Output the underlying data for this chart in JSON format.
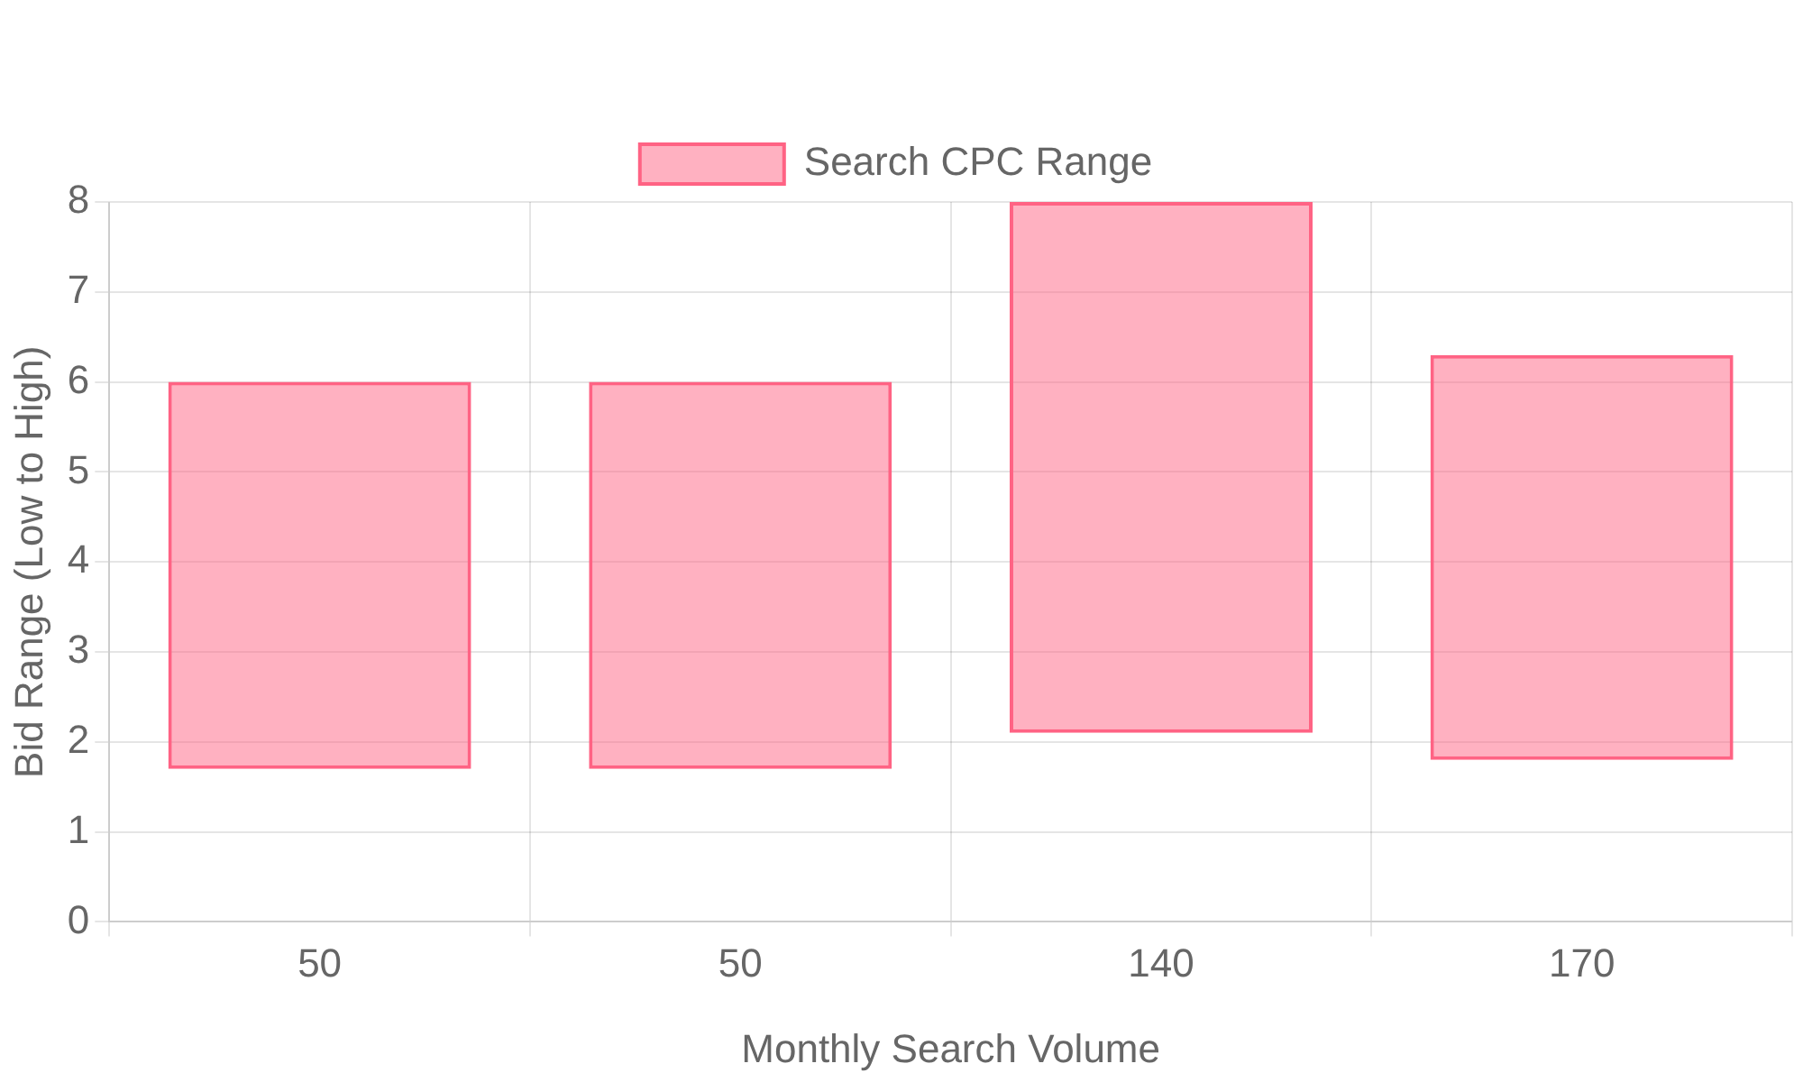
{
  "chart_data": {
    "type": "bar",
    "xlabel": "Monthly Search Volume",
    "ylabel": "Bid Range (Low to High)",
    "categories": [
      "50",
      "50",
      "140",
      "170"
    ],
    "series": [
      {
        "name": "Search CPC Range",
        "color": "#ff6384",
        "values": [
          4.3,
          4.3,
          5.9,
          4.5
        ],
        "base": [
          1.7,
          1.7,
          2.1,
          1.8
        ]
      }
    ],
    "ylim": [
      0,
      8
    ],
    "yticks": [
      0,
      1,
      2,
      3,
      4,
      5,
      6,
      7,
      8
    ],
    "grid": true,
    "legend": "top"
  }
}
